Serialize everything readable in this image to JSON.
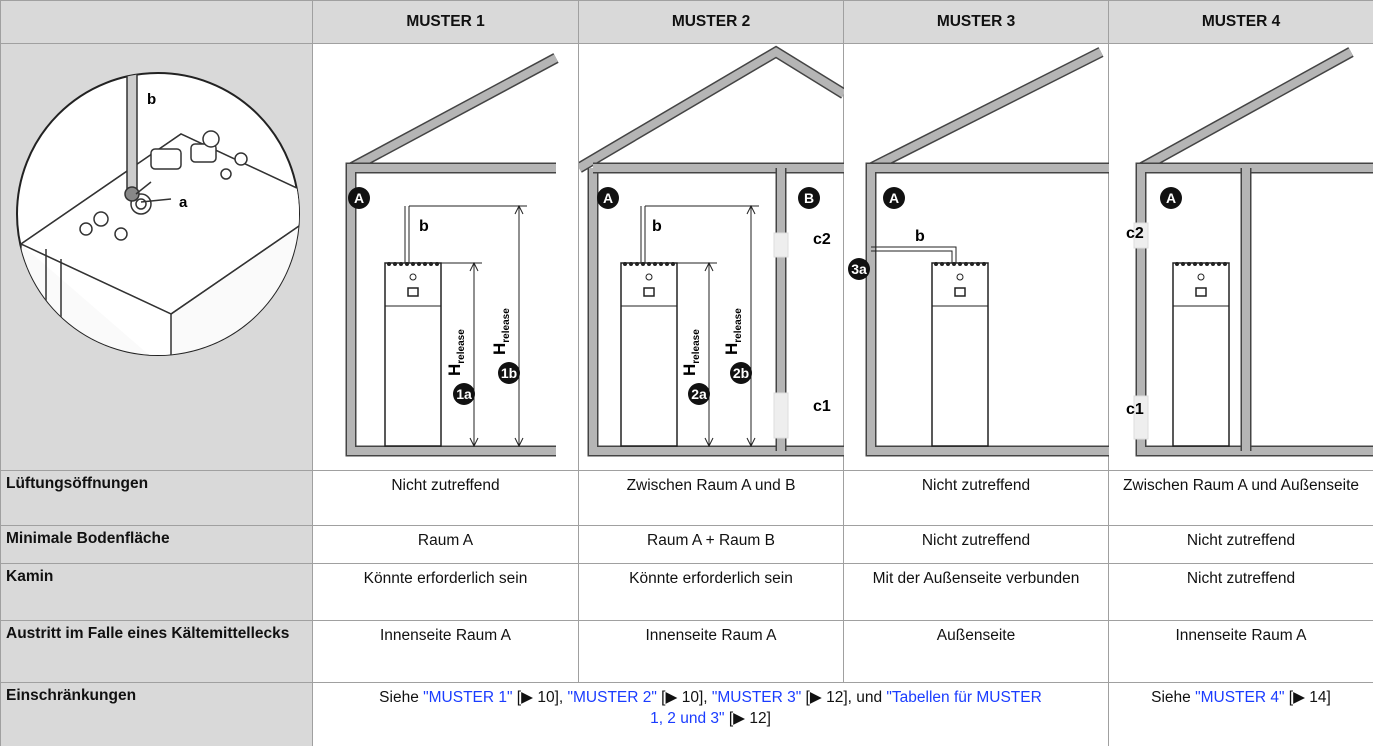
{
  "header": {
    "columns": [
      "MUSTER 1",
      "MUSTER 2",
      "MUSTER 3",
      "MUSTER 4"
    ]
  },
  "photo": {
    "labels": [
      "b",
      "a"
    ]
  },
  "diagrams": [
    {
      "rooms": [
        "A"
      ],
      "pipe_label": "b",
      "dimensions": [
        {
          "symbol": "H",
          "subscript": "release",
          "marker": "1a"
        },
        {
          "symbol": "H",
          "subscript": "release",
          "marker": "1b"
        }
      ]
    },
    {
      "rooms": [
        "A",
        "B"
      ],
      "pipe_label": "b",
      "vents": [
        "c2",
        "c1"
      ],
      "dimensions": [
        {
          "symbol": "H",
          "subscript": "release",
          "marker": "2a"
        },
        {
          "symbol": "H",
          "subscript": "release",
          "marker": "2b"
        }
      ]
    },
    {
      "rooms": [
        "A"
      ],
      "pipe_label": "b",
      "outlet": "3a"
    },
    {
      "rooms": [
        "A"
      ],
      "vents": [
        "c2",
        "c1"
      ]
    }
  ],
  "rows": [
    {
      "label": "Lüftungsöffnungen",
      "cells": [
        "Nicht zutreffend",
        "Zwischen Raum A und B",
        "Nicht zutreffend",
        "Zwischen Raum A und Außenseite"
      ]
    },
    {
      "label": "Minimale Bodenfläche",
      "cells": [
        "Raum A",
        "Raum A + Raum B",
        "Nicht zutreffend",
        "Nicht zutreffend"
      ]
    },
    {
      "label": "Kamin",
      "cells": [
        "Könnte erforderlich sein",
        "Könnte erforderlich sein",
        "Mit der Außenseite verbunden",
        "Nicht zutreffend"
      ]
    },
    {
      "label": "Austritt im Falle eines Kältemittellecks",
      "cells": [
        "Innenseite Raum A",
        "Innenseite Raum A",
        "Außenseite",
        "Innenseite Raum A"
      ]
    }
  ],
  "restrictions": {
    "label": "Einschränkungen",
    "left": [
      {
        "text": "Siehe "
      },
      {
        "link": "\"MUSTER 1\""
      },
      {
        "text": " [▶ 10], "
      },
      {
        "link": "\"MUSTER 2\""
      },
      {
        "text": " [▶ 10], "
      },
      {
        "link": "\"MUSTER 3\""
      },
      {
        "text": " [▶ 12], und "
      },
      {
        "link": "\"Tabellen für MUSTER 1, 2 und 3\""
      },
      {
        "text": " [▶ 12]"
      }
    ],
    "right": [
      {
        "text": "Siehe "
      },
      {
        "link": "\"MUSTER 4\""
      },
      {
        "text": " [▶ 14]"
      }
    ]
  }
}
